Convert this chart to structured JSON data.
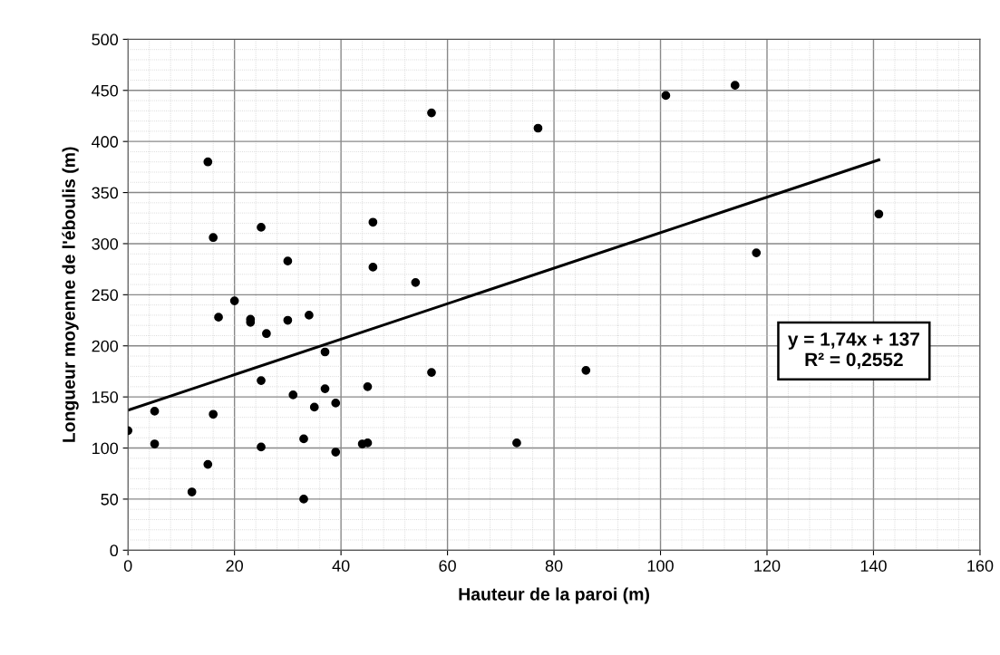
{
  "chart_data": {
    "type": "scatter",
    "xlabel": "Hauteur de la paroi (m)",
    "ylabel": "Longueur moyenne de l'éboulis (m)",
    "xlim": [
      0,
      160
    ],
    "xticks": [
      0,
      20,
      40,
      60,
      80,
      100,
      120,
      140,
      160
    ],
    "ylim": [
      0,
      500
    ],
    "yticks": [
      0,
      50,
      100,
      150,
      200,
      250,
      300,
      350,
      400,
      450,
      500
    ],
    "grid": true,
    "marker": "circle",
    "series": [
      {
        "color": "#000000",
        "x": [
          15,
          16,
          25,
          46,
          30,
          46,
          54,
          20,
          17,
          23,
          23,
          30,
          34,
          26,
          37,
          25,
          57,
          31,
          37,
          45,
          5,
          16,
          35,
          39,
          0,
          5,
          33,
          25,
          39,
          44,
          45,
          15,
          12,
          33,
          77,
          101,
          114,
          141,
          118,
          86,
          73,
          57
        ],
        "values": [
          380,
          306,
          316,
          321,
          283,
          277,
          262,
          244,
          228,
          226,
          223,
          225,
          230,
          212,
          194,
          166,
          174,
          152,
          158,
          160,
          136,
          133,
          140,
          144,
          117,
          104,
          109,
          101,
          96,
          104,
          105,
          84,
          57,
          50,
          413,
          445,
          455,
          329,
          291,
          176,
          105,
          428
        ]
      },
      {
        "type": "line",
        "color": "#000000",
        "x": [
          0,
          141
        ],
        "values": [
          137,
          382
        ],
        "marker": "none",
        "line_style": "solid"
      }
    ],
    "annotations": [
      "y = 1,74x + 137\nR² = 0,2552"
    ]
  }
}
